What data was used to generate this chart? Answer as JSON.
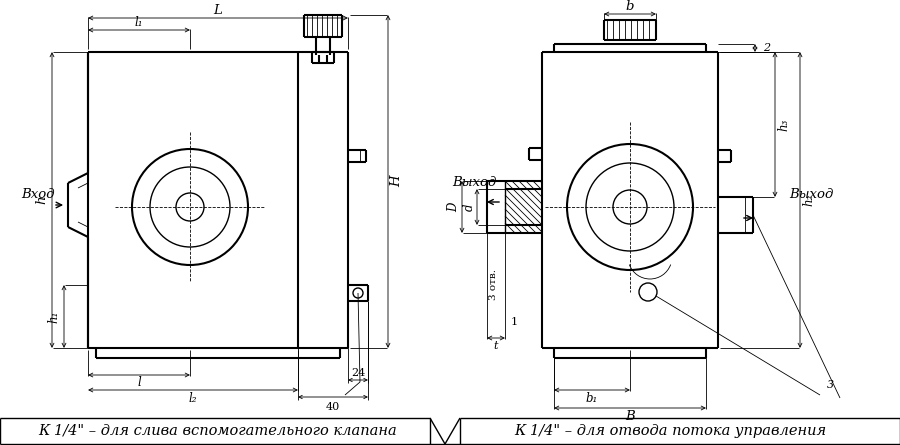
{
  "bg_color": "#ffffff",
  "line_color": "#000000",
  "thin_lw": 0.6,
  "medium_lw": 1.0,
  "thick_lw": 1.5,
  "dim_lw": 0.6,
  "annotation_fontsize": 8.5,
  "label_fontsize": 9.5,
  "caption_fontsize": 10.5,
  "caption_left": "К 1/4\" – для слива вспомогательного клапана",
  "caption_right": "К 1/4\" – для отвода потока управления",
  "label_vhod": "Вход",
  "label_vyhod_left": "Выход",
  "label_vyhod_right": "Выход",
  "dim_L": "L",
  "dim_l1": "l₁",
  "dim_l": "l",
  "dim_l2": "l₂",
  "dim_h": "h",
  "dim_h1": "h₁",
  "dim_H": "H",
  "dim_b": "b",
  "dim_B": "B",
  "dim_b1": "b₁",
  "dim_D": "D",
  "dim_d": "d",
  "dim_h2": "h₂",
  "dim_h3": "h₃",
  "dim_24": "24",
  "dim_40": "40",
  "dim_2": "2",
  "dim_3_otv": "3 отв.",
  "dim_1": "1",
  "dim_t": "t",
  "dim_3": "3"
}
